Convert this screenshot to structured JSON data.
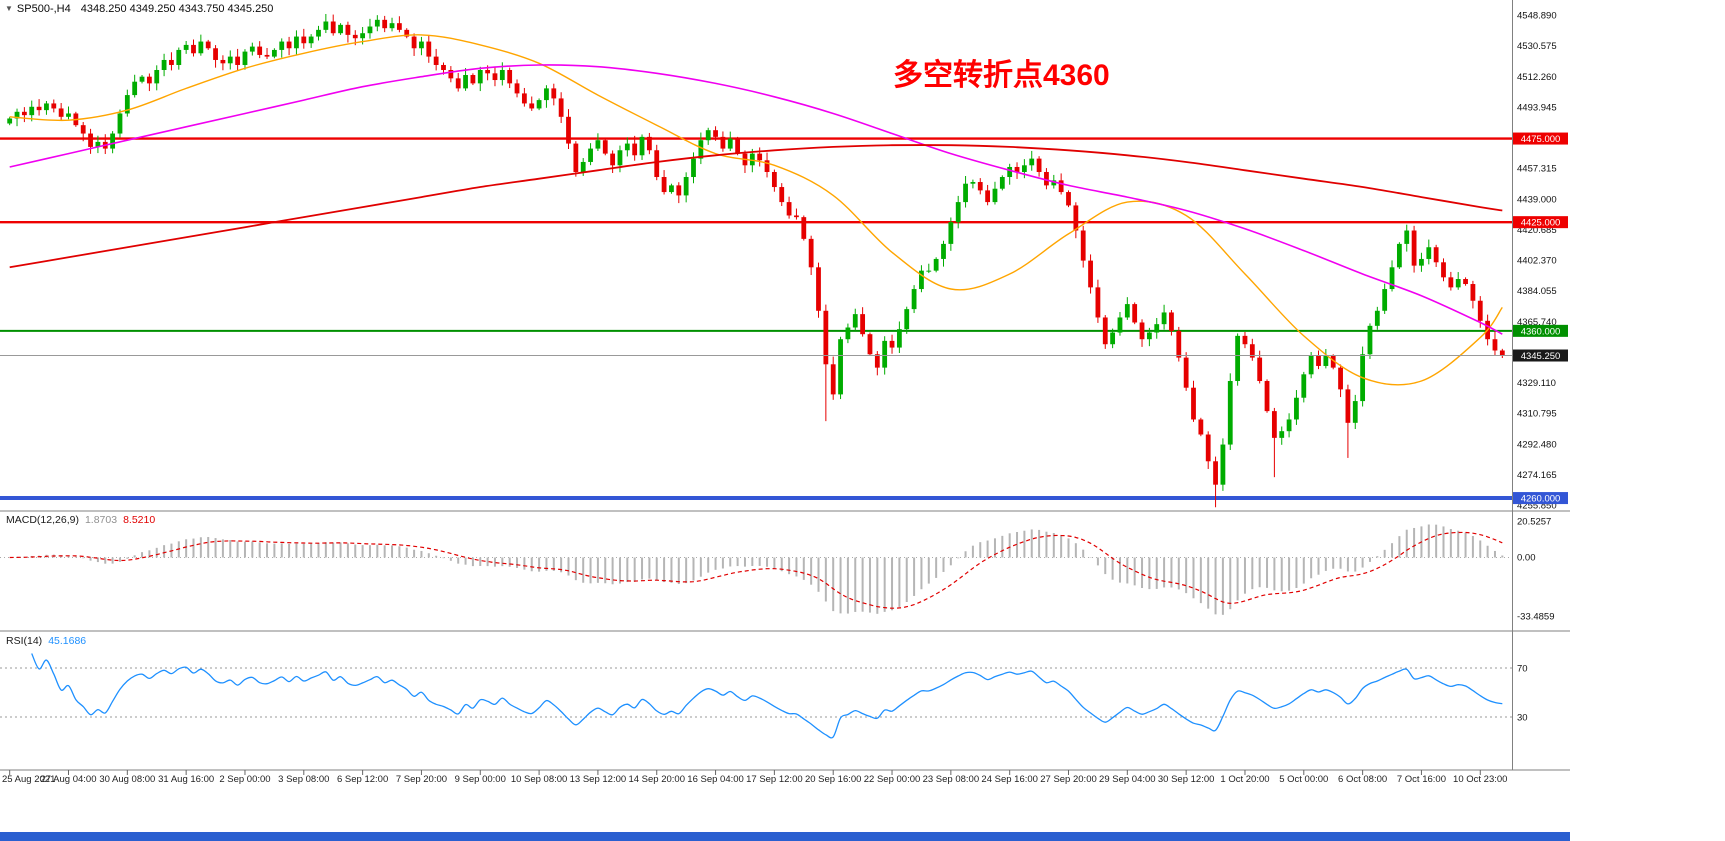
{
  "header": {
    "expander": "▼",
    "symbol_timeframe": "SP500-,H4",
    "ohlc": "4348.250 4349.250 4343.750 4345.250"
  },
  "annotation": {
    "text": "多空转折点4360",
    "color": "#FF0000"
  },
  "colors": {
    "background": "#FFFFFF",
    "candle_up": "#00AC00",
    "candle_down": "#E60000",
    "separator": "#808080",
    "axis_text": "#111111",
    "price_line": "#999999",
    "macd_hist": "#B5B5B5",
    "macd_signal": "#E00000",
    "rsi_line": "#1E90FF",
    "taskbar": "#2A5FD0"
  },
  "chart_data": [
    {
      "panel": "price",
      "type": "candlestick",
      "symbol_timeframe": "SP500-,H4",
      "current_bar": {
        "open": 4348.25,
        "high": 4349.25,
        "low": 4343.75,
        "close": 4345.25
      },
      "ylim": [
        4255.85,
        4548.89
      ],
      "time_labels": [
        "25 Aug 2021",
        "27 Aug 04:00",
        "30 Aug 08:00",
        "31 Aug 16:00",
        "2 Sep 00:00",
        "3 Sep 08:00",
        "6 Sep 12:00",
        "7 Sep 20:00",
        "9 Sep 00:00",
        "10 Sep 08:00",
        "13 Sep 12:00",
        "14 Sep 20:00",
        "16 Sep 04:00",
        "17 Sep 12:00",
        "20 Sep 16:00",
        "22 Sep 00:00",
        "23 Sep 08:00",
        "24 Sep 16:00",
        "27 Sep 20:00",
        "29 Sep 04:00",
        "30 Sep 12:00",
        "1 Oct 20:00",
        "5 Oct 00:00",
        "6 Oct 08:00",
        "7 Oct 16:00",
        "10 Oct 23:00"
      ],
      "y_axis_labels": [
        "4548.890",
        "4530.575",
        "4512.260",
        "4493.945",
        "4457.315",
        "4439.000",
        "4420.685",
        "4402.370",
        "4384.055",
        "4365.740",
        "4329.110",
        "4310.795",
        "4292.480",
        "4274.165",
        "4255.850"
      ],
      "first_open": 4484,
      "closes": [
        4487,
        4491,
        4489,
        4494,
        4492,
        4496,
        4493,
        4488,
        4490,
        4483,
        4478,
        4470,
        4473,
        4469,
        4478,
        4490,
        4501,
        4509,
        4512,
        4508,
        4516,
        4522,
        4519,
        4528,
        4531,
        4526,
        4533,
        4529,
        4522,
        4520,
        4524,
        4519,
        4527,
        4530,
        4525,
        4524,
        4528,
        4533,
        4529,
        4536,
        4532,
        4536,
        4540,
        4545,
        4538,
        4543,
        4537,
        4535,
        4538,
        4542,
        4546,
        4541,
        4544,
        4540,
        4536,
        4529,
        4533,
        4524,
        4519,
        4516,
        4511,
        4505,
        4513,
        4508,
        4516,
        4514,
        4510,
        4516,
        4508,
        4502,
        4496,
        4493,
        4498,
        4505,
        4499,
        4488,
        4472,
        4455,
        4461,
        4469,
        4474,
        4466,
        4459,
        4468,
        4472,
        4465,
        4476,
        4468,
        4452,
        4443,
        4447,
        4441,
        4452,
        4463,
        4474,
        4480,
        4476,
        4469,
        4475,
        4466,
        4459,
        4466,
        4462,
        4455,
        4446,
        4437,
        4429,
        4428,
        4415,
        4398,
        4372,
        4340,
        4322,
        4355,
        4362,
        4370,
        4358,
        4346,
        4338,
        4354,
        4350,
        4361,
        4373,
        4385,
        4396,
        4396,
        4403,
        4412,
        4425,
        4437,
        4448,
        4449,
        4444,
        4437,
        4445,
        4452,
        4458,
        4455,
        4459,
        4463,
        4455,
        4447,
        4450,
        4443,
        4435,
        4420,
        4402,
        4386,
        4368,
        4352,
        4359,
        4368,
        4376,
        4365,
        4355,
        4359,
        4364,
        4371,
        4360,
        4344,
        4326,
        4307,
        4298,
        4282,
        4268,
        4292,
        4330,
        4357,
        4352,
        4344,
        4330,
        4312,
        4296,
        4300,
        4307,
        4320,
        4334,
        4345,
        4339,
        4345,
        4338,
        4325,
        4305,
        4318,
        4346,
        4363,
        4372,
        4385,
        4398,
        4412,
        4420,
        4399,
        4403,
        4410,
        4401,
        4392,
        4386,
        4391,
        4388,
        4378,
        4366,
        4355,
        4348.25,
        4345.25
      ],
      "wick_overrides": {
        "43": {
          "high": 4549.5
        },
        "50": {
          "high": 4548.8
        },
        "111": {
          "low": 4306
        },
        "164": {
          "low": 4254.5
        },
        "172": {
          "low": 4272.5
        },
        "182": {
          "low": 4284
        },
        "190": {
          "high": 4423.5
        },
        "203": {
          "high": 4349.25,
          "low": 4343.75
        }
      },
      "sample_indices": [
        0,
        8,
        16,
        24,
        32,
        40,
        48,
        56,
        64,
        72,
        80,
        88,
        96,
        104,
        112,
        120,
        128,
        136,
        144,
        152,
        160,
        168,
        176,
        184,
        192,
        200,
        203
      ],
      "moving_averages": [
        {
          "name": "ma-fast-orange",
          "color": "#FFA500",
          "width": 1.4,
          "points": [
            4488,
            4486,
            4492,
            4505,
            4517,
            4526,
            4533,
            4537,
            4531,
            4520,
            4501,
            4483,
            4466,
            4459,
            4441,
            4407,
            4385,
            4394,
            4418,
            4437,
            4429,
            4394,
            4357,
            4332,
            4330,
            4356,
            4374
          ]
        },
        {
          "name": "ma-mid-magenta",
          "color": "#F000F0",
          "width": 1.6,
          "points": [
            4458,
            4466,
            4474,
            4482,
            4490,
            4498,
            4506,
            4512,
            4517,
            4519,
            4518,
            4514,
            4508,
            4500,
            4490,
            4478,
            4466,
            4456,
            4447,
            4440,
            4432,
            4421,
            4408,
            4394,
            4381,
            4365,
            4358
          ]
        },
        {
          "name": "ma-slow-red",
          "color": "#E00000",
          "width": 1.8,
          "points": [
            4398,
            4404,
            4410,
            4416,
            4422,
            4428,
            4434,
            4440,
            4446,
            4451,
            4456,
            4461,
            4465,
            4468,
            4470,
            4471,
            4471,
            4470,
            4468,
            4465,
            4461,
            4456,
            4451,
            4446,
            4440,
            4434,
            4432
          ]
        }
      ],
      "horizontal_lines": [
        {
          "price": 4475,
          "label": "4475.000",
          "color": "#EE0000",
          "width": 2.4
        },
        {
          "price": 4425,
          "label": "4425.000",
          "color": "#EE0000",
          "width": 2.4
        },
        {
          "price": 4360,
          "label": "4360.000",
          "color": "#009000",
          "width": 2
        },
        {
          "price": 4260,
          "label": "4260.000",
          "color": "#3356D6",
          "width": 4
        }
      ],
      "price_badge": {
        "price": 4345.25,
        "label": "4345.250",
        "bg": "#1A1A1A"
      }
    },
    {
      "panel": "macd",
      "type": "bar",
      "label": "MACD(12,26,9)",
      "value_main": "1.8703",
      "value_signal": "8.5210",
      "params": {
        "fast": 12,
        "slow": 26,
        "signal": 9
      },
      "axis_labels": [
        "20.5257",
        "0.00",
        "-33.4859"
      ],
      "derived_from": "price.closes"
    },
    {
      "panel": "rsi",
      "type": "line",
      "label": "RSI(14)",
      "value": "45.1686",
      "period": 14,
      "levels": [
        70,
        30
      ],
      "axis_labels": [
        "70",
        "30"
      ],
      "derived_from": "price.closes"
    }
  ]
}
